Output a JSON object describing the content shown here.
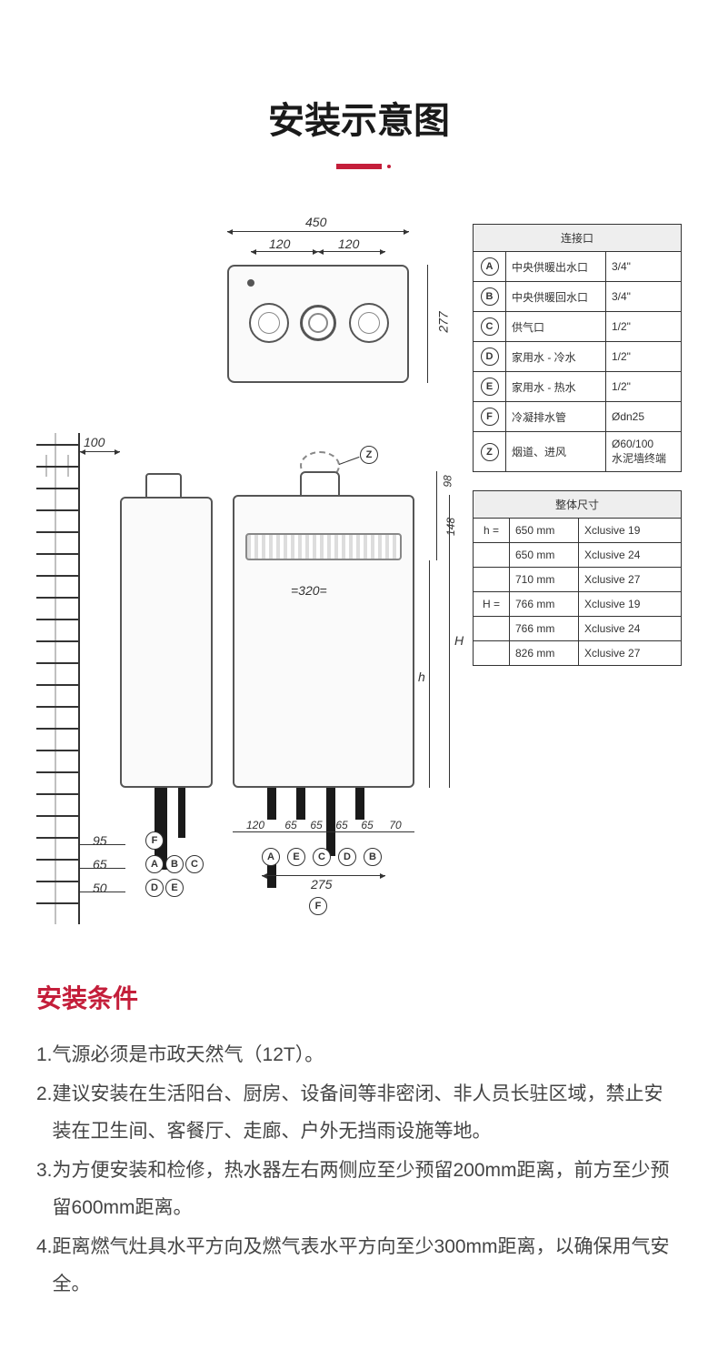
{
  "title": "安装示意图",
  "top_view": {
    "width_overall": "450",
    "dial_spacing_l": "120",
    "dial_spacing_r": "120",
    "height": "277"
  },
  "side_view": {
    "wall_gap": "100",
    "bottom_dims": [
      "95",
      "65",
      "50"
    ],
    "bottom_groups": [
      [
        "F"
      ],
      [
        "A",
        "B",
        "C"
      ],
      [
        "D",
        "E"
      ]
    ]
  },
  "front_view": {
    "z_label": "Z",
    "top_gap": "98",
    "panel_gap": "148",
    "inner_width": "=320=",
    "h_small": "h",
    "h_big": "H",
    "bottom_dims": [
      "120",
      "65",
      "65",
      "65",
      "65",
      "70"
    ],
    "port_order": [
      "A",
      "E",
      "C",
      "D",
      "B"
    ],
    "bottom_span": "275",
    "f_label": "F"
  },
  "connections": {
    "header": "连接口",
    "rows": [
      {
        "k": "A",
        "name": "中央供暖出水口",
        "size": "3/4\""
      },
      {
        "k": "B",
        "name": "中央供暖回水口",
        "size": "3/4\""
      },
      {
        "k": "C",
        "name": "供气口",
        "size": "1/2\""
      },
      {
        "k": "D",
        "name": "家用水 - 冷水",
        "size": "1/2\""
      },
      {
        "k": "E",
        "name": "家用水 - 热水",
        "size": "1/2\""
      },
      {
        "k": "F",
        "name": "冷凝排水管",
        "size": "Ødn25"
      },
      {
        "k": "Z",
        "name": "烟道、进风",
        "size": "Ø60/100\n水泥墙终端"
      }
    ]
  },
  "dimensions": {
    "header": "整体尺寸",
    "rows": [
      {
        "k": "h =",
        "v": "650 mm",
        "m": "Xclusive 19"
      },
      {
        "k": "",
        "v": "650 mm",
        "m": "Xclusive 24"
      },
      {
        "k": "",
        "v": "710 mm",
        "m": "Xclusive 27"
      },
      {
        "k": "H =",
        "v": "766 mm",
        "m": "Xclusive 19"
      },
      {
        "k": "",
        "v": "766 mm",
        "m": "Xclusive 24"
      },
      {
        "k": "",
        "v": "826 mm",
        "m": "Xclusive 27"
      }
    ]
  },
  "conditions": {
    "title": "安装条件",
    "items": [
      "气源必须是市政天然气（12T）。",
      "建议安装在生活阳台、厨房、设备间等非密闭、非人员长驻区域，禁止安装在卫生间、客餐厅、走廊、户外无挡雨设施等地。",
      "为方便安装和检修，热水器左右两侧应至少预留200mm距离，前方至少预留600mm距离。",
      "距离燃气灶具水平方向及燃气表水平方向至少300mm距离，以确保用气安全。"
    ]
  },
  "colors": {
    "accent": "#c41e3a",
    "text": "#333333",
    "line": "#555555",
    "table_header_bg": "#eeeeee",
    "background": "#ffffff"
  }
}
